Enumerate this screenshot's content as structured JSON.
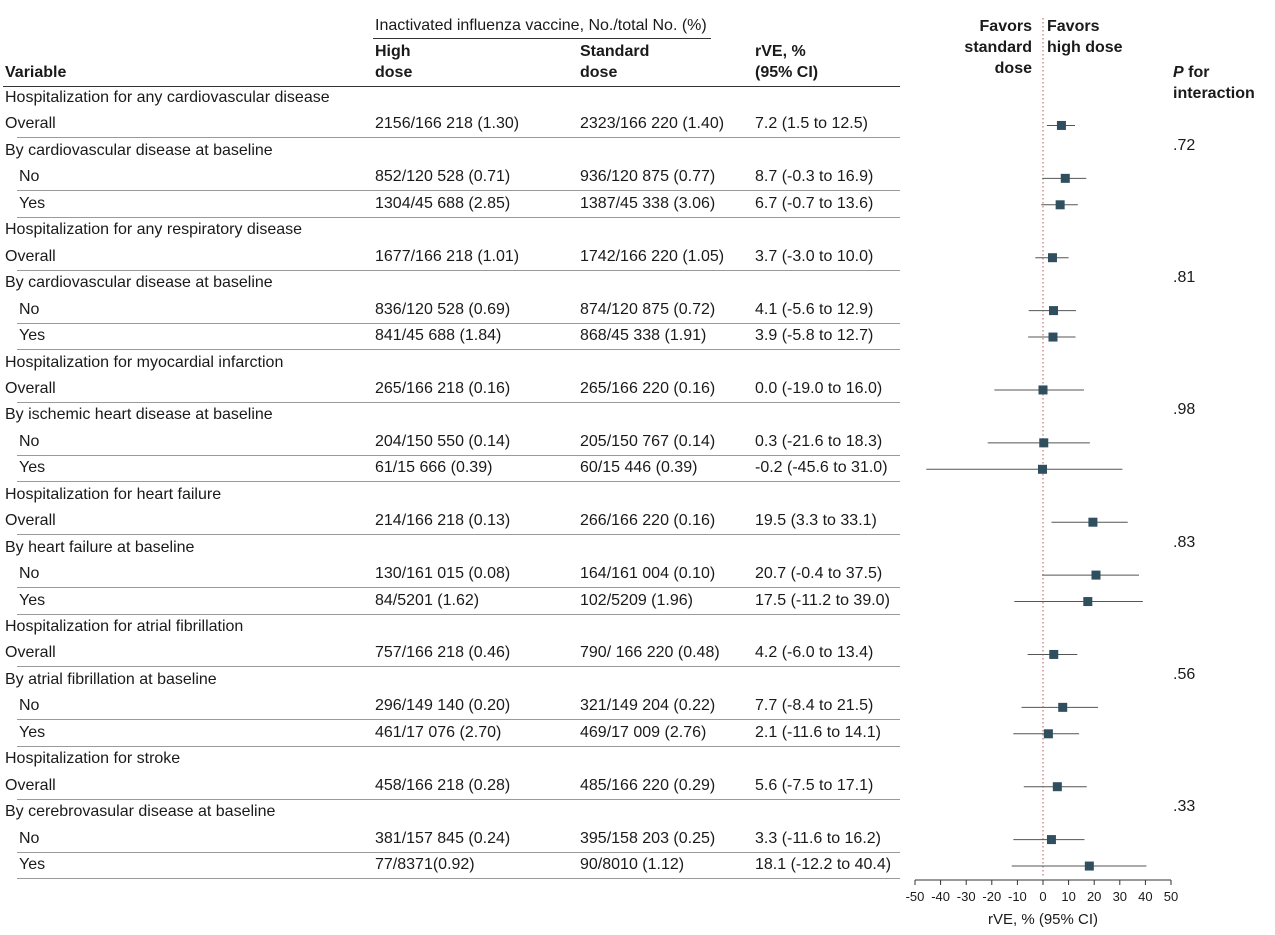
{
  "header": {
    "group_title": "Inactivated influenza vaccine, No./total No. (%)",
    "col_variable": "Variable",
    "col_high": [
      "High",
      "dose"
    ],
    "col_standard": [
      "Standard",
      "dose"
    ],
    "col_rve": [
      "rVE, %",
      "(95% CI)"
    ],
    "favors_left": [
      "Favors",
      "standard",
      "dose"
    ],
    "favors_right": [
      "Favors",
      "high dose"
    ],
    "p_header": [
      "P for",
      "interaction"
    ],
    "p_italic": "P",
    "p_rest": " for"
  },
  "rows": [
    {
      "label": "Hospitalization for any cardiovascular disease",
      "type": "section"
    },
    {
      "label": "Overall",
      "type": "data",
      "high": "2156/166 218 (1.30)",
      "standard": "2323/166 220 (1.40)",
      "rve": "7.2 (1.5 to 12.5)"
    },
    {
      "label": "By cardiovascular disease at baseline",
      "type": "section"
    },
    {
      "label": "No",
      "type": "sub",
      "high": "852/120 528 (0.71)",
      "standard": "936/120 875 (0.77)",
      "rve": "8.7 (-0.3 to 16.9)"
    },
    {
      "label": "Yes",
      "type": "sub",
      "high": "1304/45 688 (2.85)",
      "standard": "1387/45 338 (3.06)",
      "rve": "6.7 (-0.7 to 13.6)"
    },
    {
      "label": "Hospitalization for any respiratory disease",
      "type": "section"
    },
    {
      "label": "Overall",
      "type": "data",
      "high": "1677/166 218 (1.01)",
      "standard": "1742/166 220 (1.05)",
      "rve": "3.7 (-3.0 to 10.0)"
    },
    {
      "label": "By cardiovascular disease at baseline",
      "type": "section"
    },
    {
      "label": "No",
      "type": "sub",
      "high": "836/120 528 (0.69)",
      "standard": "874/120 875 (0.72)",
      "rve": "4.1 (-5.6 to 12.9)"
    },
    {
      "label": "Yes",
      "type": "sub",
      "high": "841/45 688 (1.84)",
      "standard": "868/45 338 (1.91)",
      "rve": "3.9 (-5.8 to 12.7)"
    },
    {
      "label": "Hospitalization for myocardial infarction",
      "type": "section"
    },
    {
      "label": "Overall",
      "type": "data",
      "high": "265/166 218 (0.16)",
      "standard": "265/166 220 (0.16)",
      "rve": "0.0 (-19.0 to 16.0)"
    },
    {
      "label": "By ischemic heart disease at baseline",
      "type": "section"
    },
    {
      "label": "No",
      "type": "sub",
      "high": "204/150 550 (0.14)",
      "standard": "205/150 767 (0.14)",
      "rve": "0.3 (-21.6 to 18.3)"
    },
    {
      "label": "Yes",
      "type": "sub",
      "high": "61/15 666 (0.39)",
      "standard": "60/15 446  (0.39)",
      "rve": "-0.2 (-45.6 to 31.0)"
    },
    {
      "label": "Hospitalization for heart failure",
      "type": "section"
    },
    {
      "label": "Overall",
      "type": "data",
      "high": "214/166 218 (0.13)",
      "standard": "266/166 220 (0.16)",
      "rve": "19.5 (3.3 to 33.1)"
    },
    {
      "label": "By heart failure at baseline",
      "type": "section"
    },
    {
      "label": "No",
      "type": "sub",
      "high": "130/161 015 (0.08)",
      "standard": "164/161 004 (0.10)",
      "rve": "20.7 (-0.4 to 37.5)"
    },
    {
      "label": "Yes",
      "type": "sub",
      "high": "84/5201 (1.62)",
      "standard": "102/5209 (1.96)",
      "rve": "17.5 (-11.2 to 39.0)"
    },
    {
      "label": "Hospitalization for atrial fibrillation",
      "type": "section"
    },
    {
      "label": "Overall",
      "type": "data",
      "high": "757/166 218 (0.46)",
      "standard": "790/ 166 220 (0.48)",
      "rve": "4.2 (-6.0 to 13.4)"
    },
    {
      "label": "By atrial fibrillation at baseline",
      "type": "section"
    },
    {
      "label": "No",
      "type": "sub",
      "high": "296/149 140 (0.20)",
      "standard": "321/149 204 (0.22)",
      "rve": "7.7 (-8.4 to 21.5)"
    },
    {
      "label": "Yes",
      "type": "sub",
      "high": "461/17 076 (2.70)",
      "standard": "469/17 009 (2.76)",
      "rve": "2.1 (-11.6 to 14.1)"
    },
    {
      "label": "Hospitalization for stroke",
      "type": "section"
    },
    {
      "label": "Overall",
      "type": "data",
      "high": "458/166 218 (0.28)",
      "standard": "485/166 220 (0.29)",
      "rve": "5.6 (-7.5 to 17.1)"
    },
    {
      "label": "By cerebrovasular disease at baseline",
      "type": "section"
    },
    {
      "label": "No",
      "type": "sub",
      "high": "381/157 845 (0.24)",
      "standard": "395/158 203 (0.25)",
      "rve": "3.3 (-11.6 to 16.2)"
    },
    {
      "label": "Yes",
      "type": "sub",
      "high": "77/8371(0.92)",
      "standard": "90/8010 (1.12)",
      "rve": "18.1 (-12.2 to 40.4)"
    }
  ],
  "p_values": [
    {
      "after_row": 2,
      "value": ".72"
    },
    {
      "after_row": 7,
      "value": ".81"
    },
    {
      "after_row": 12,
      "value": ".98"
    },
    {
      "after_row": 17,
      "value": ".83"
    },
    {
      "after_row": 22,
      "value": ".56"
    },
    {
      "after_row": 27,
      "value": ".33"
    }
  ],
  "chart_data": {
    "type": "forest",
    "xlabel": "rVE, % (95% CI)",
    "xlim": [
      -50,
      50
    ],
    "xticks": [
      -50,
      -40,
      -30,
      -20,
      -10,
      0,
      10,
      20,
      30,
      40,
      50
    ],
    "reference_line": 0,
    "marker_color": "#2f4f5f",
    "points": [
      {
        "row": 1,
        "est": 7.2,
        "lo": 1.5,
        "hi": 12.5
      },
      {
        "row": 3,
        "est": 8.7,
        "lo": -0.3,
        "hi": 16.9
      },
      {
        "row": 4,
        "est": 6.7,
        "lo": -0.7,
        "hi": 13.6
      },
      {
        "row": 6,
        "est": 3.7,
        "lo": -3.0,
        "hi": 10.0
      },
      {
        "row": 8,
        "est": 4.1,
        "lo": -5.6,
        "hi": 12.9
      },
      {
        "row": 9,
        "est": 3.9,
        "lo": -5.8,
        "hi": 12.7
      },
      {
        "row": 11,
        "est": 0.0,
        "lo": -19.0,
        "hi": 16.0
      },
      {
        "row": 13,
        "est": 0.3,
        "lo": -21.6,
        "hi": 18.3
      },
      {
        "row": 14,
        "est": -0.2,
        "lo": -45.6,
        "hi": 31.0
      },
      {
        "row": 16,
        "est": 19.5,
        "lo": 3.3,
        "hi": 33.1
      },
      {
        "row": 18,
        "est": 20.7,
        "lo": -0.4,
        "hi": 37.5
      },
      {
        "row": 19,
        "est": 17.5,
        "lo": -11.2,
        "hi": 39.0
      },
      {
        "row": 21,
        "est": 4.2,
        "lo": -6.0,
        "hi": 13.4
      },
      {
        "row": 23,
        "est": 7.7,
        "lo": -8.4,
        "hi": 21.5
      },
      {
        "row": 24,
        "est": 2.1,
        "lo": -11.6,
        "hi": 14.1
      },
      {
        "row": 26,
        "est": 5.6,
        "lo": -7.5,
        "hi": 17.1
      },
      {
        "row": 28,
        "est": 3.3,
        "lo": -11.6,
        "hi": 16.2
      },
      {
        "row": 29,
        "est": 18.1,
        "lo": -12.2,
        "hi": 40.4
      }
    ]
  }
}
